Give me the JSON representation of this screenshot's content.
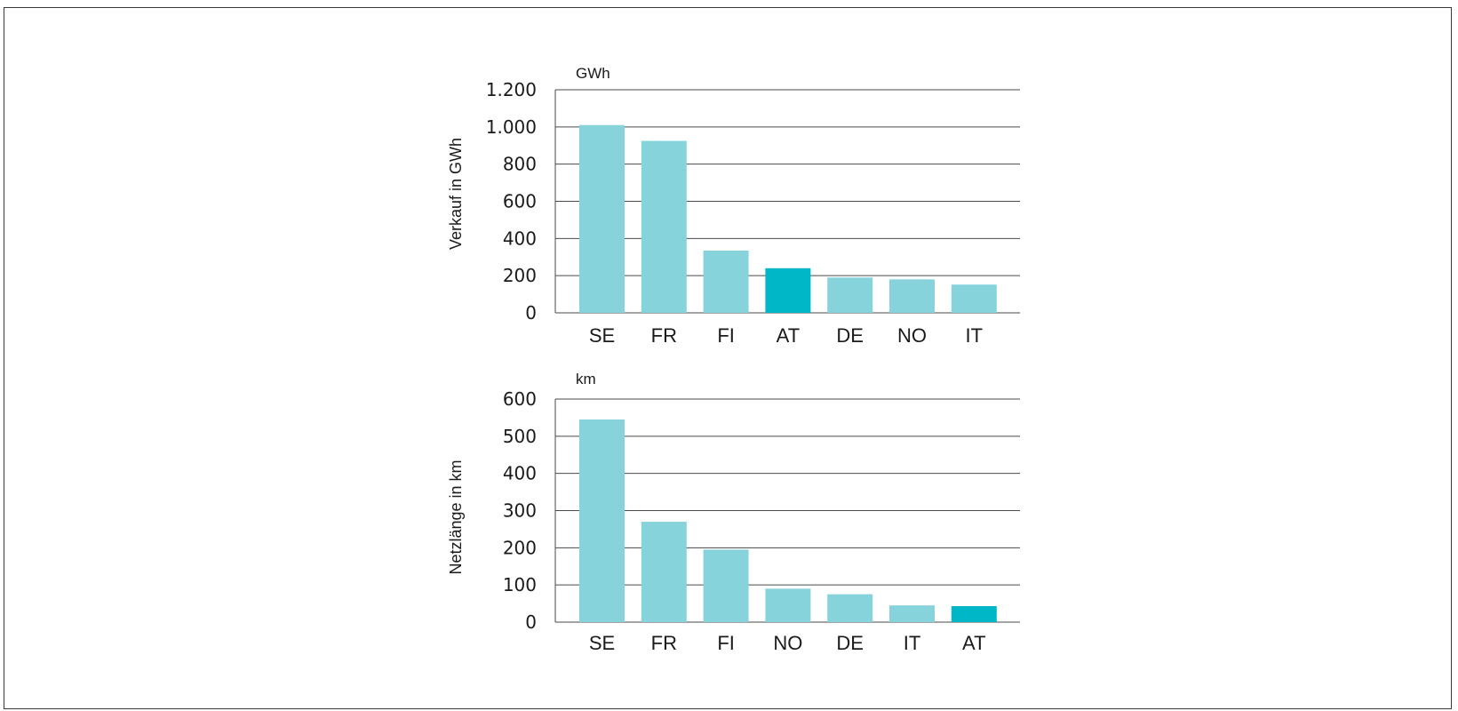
{
  "chart_data": [
    {
      "type": "bar",
      "unit_label": "GWh",
      "ylabel": "Verkauf in GWh",
      "xlabel": "",
      "categories": [
        "SE",
        "FR",
        "FI",
        "AT",
        "DE",
        "NO",
        "IT"
      ],
      "values": [
        1010,
        925,
        335,
        240,
        190,
        180,
        152
      ],
      "highlight_category": "AT",
      "ylim": [
        0,
        1200
      ],
      "yticks": [
        0,
        200,
        400,
        600,
        800,
        1000,
        1200
      ],
      "ytick_labels": [
        "0",
        "200",
        "400",
        "600",
        "800",
        "1.000",
        "1.200"
      ],
      "grid": true
    },
    {
      "type": "bar",
      "unit_label": "km",
      "ylabel": "Netzlänge in km",
      "xlabel": "",
      "categories": [
        "SE",
        "FR",
        "FI",
        "NO",
        "DE",
        "IT",
        "AT"
      ],
      "values": [
        545,
        270,
        195,
        90,
        75,
        45,
        43
      ],
      "highlight_category": "AT",
      "ylim": [
        0,
        600
      ],
      "yticks": [
        0,
        100,
        200,
        300,
        400,
        500,
        600
      ],
      "ytick_labels": [
        "0",
        "100",
        "200",
        "300",
        "400",
        "500",
        "600"
      ],
      "grid": true
    }
  ],
  "colors": {
    "bar": "#87d3dc",
    "bar_highlight": "#00b7c7"
  }
}
